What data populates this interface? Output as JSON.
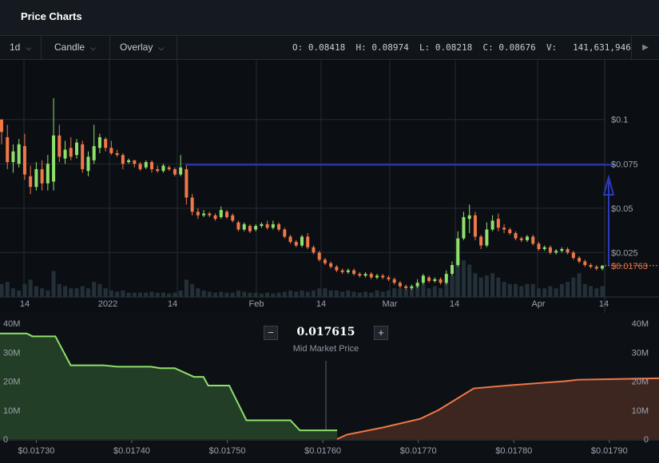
{
  "header": {
    "title": "Price Charts"
  },
  "toolbar": {
    "interval": "1d",
    "chart_type": "Candle",
    "overlay": "Overlay",
    "ohlc": {
      "o_label": "O:",
      "o": "0.08418",
      "h_label": "H:",
      "h": "0.08974",
      "l_label": "L:",
      "l": "0.08218",
      "c_label": "C:",
      "c": "0.08676",
      "v_label": "V:",
      "v": "141,631,946"
    }
  },
  "colors": {
    "up": "#8ee06a",
    "down": "#f07848",
    "bid_fill": "#233e26",
    "ask_fill": "#3e2620",
    "line": "#2b3ab8",
    "volume": "#243038"
  },
  "chart_data": [
    {
      "type": "candlestick",
      "x_tick_labels": [
        "14",
        "2022",
        "14",
        "Feb",
        "14",
        "Mar",
        "14",
        "Apr",
        "14"
      ],
      "y_tick_labels": [
        "$0.1",
        "$0.075",
        "$0.05",
        "$0.025"
      ],
      "ylim": [
        0.0,
        0.1336
      ],
      "last_price_label": "$0.01763",
      "last_price": 0.01763,
      "horizontal_line": 0.0745,
      "arrow": {
        "from": 0.018,
        "to": 0.063
      },
      "candles": [
        [
          0.1,
          0.093,
          0.098,
          0.086
        ],
        [
          0.09,
          0.076,
          0.097,
          0.072
        ],
        [
          0.076,
          0.082,
          0.086,
          0.07
        ],
        [
          0.075,
          0.086,
          0.089,
          0.073
        ],
        [
          0.085,
          0.069,
          0.092,
          0.066
        ],
        [
          0.068,
          0.062,
          0.074,
          0.058
        ],
        [
          0.062,
          0.072,
          0.076,
          0.06
        ],
        [
          0.072,
          0.064,
          0.077,
          0.06
        ],
        [
          0.064,
          0.075,
          0.08,
          0.06
        ],
        [
          0.065,
          0.091,
          0.112,
          0.06
        ],
        [
          0.091,
          0.079,
          0.097,
          0.076
        ],
        [
          0.078,
          0.083,
          0.088,
          0.075
        ],
        [
          0.084,
          0.079,
          0.09,
          0.077
        ],
        [
          0.08,
          0.087,
          0.089,
          0.078
        ],
        [
          0.086,
          0.072,
          0.088,
          0.07
        ],
        [
          0.071,
          0.079,
          0.082,
          0.068
        ],
        [
          0.077,
          0.085,
          0.097,
          0.075
        ],
        [
          0.084,
          0.09,
          0.092,
          0.081
        ],
        [
          0.089,
          0.084,
          0.09,
          0.082
        ],
        [
          0.084,
          0.081,
          0.088,
          0.08
        ],
        [
          0.081,
          0.08,
          0.083,
          0.079
        ],
        [
          0.08,
          0.075,
          0.081,
          0.072
        ],
        [
          0.076,
          0.077,
          0.078,
          0.075
        ],
        [
          0.077,
          0.075,
          0.077,
          0.073
        ],
        [
          0.075,
          0.072,
          0.076,
          0.071
        ],
        [
          0.073,
          0.076,
          0.077,
          0.072
        ],
        [
          0.076,
          0.072,
          0.077,
          0.07
        ],
        [
          0.072,
          0.071,
          0.074,
          0.07
        ],
        [
          0.071,
          0.074,
          0.075,
          0.07
        ],
        [
          0.073,
          0.072,
          0.074,
          0.071
        ],
        [
          0.072,
          0.069,
          0.073,
          0.068
        ],
        [
          0.069,
          0.073,
          0.08,
          0.068
        ],
        [
          0.072,
          0.056,
          0.074,
          0.052
        ],
        [
          0.056,
          0.048,
          0.058,
          0.046
        ],
        [
          0.048,
          0.046,
          0.05,
          0.044
        ],
        [
          0.046,
          0.047,
          0.049,
          0.045
        ],
        [
          0.047,
          0.046,
          0.048,
          0.045
        ],
        [
          0.046,
          0.044,
          0.047,
          0.043
        ],
        [
          0.045,
          0.049,
          0.051,
          0.044
        ],
        [
          0.048,
          0.045,
          0.049,
          0.044
        ],
        [
          0.046,
          0.043,
          0.047,
          0.042
        ],
        [
          0.042,
          0.038,
          0.043,
          0.037
        ],
        [
          0.038,
          0.041,
          0.042,
          0.037
        ],
        [
          0.04,
          0.037,
          0.041,
          0.036
        ],
        [
          0.038,
          0.04,
          0.041,
          0.037
        ],
        [
          0.04,
          0.041,
          0.042,
          0.039
        ],
        [
          0.041,
          0.039,
          0.043,
          0.038
        ],
        [
          0.039,
          0.041,
          0.043,
          0.038
        ],
        [
          0.041,
          0.038,
          0.042,
          0.037
        ],
        [
          0.038,
          0.034,
          0.039,
          0.033
        ],
        [
          0.034,
          0.031,
          0.035,
          0.03
        ],
        [
          0.031,
          0.029,
          0.032,
          0.028
        ],
        [
          0.029,
          0.034,
          0.035,
          0.028
        ],
        [
          0.034,
          0.028,
          0.036,
          0.027
        ],
        [
          0.028,
          0.025,
          0.029,
          0.024
        ],
        [
          0.025,
          0.021,
          0.026,
          0.02
        ],
        [
          0.021,
          0.019,
          0.022,
          0.018
        ],
        [
          0.019,
          0.017,
          0.02,
          0.016
        ],
        [
          0.017,
          0.015,
          0.018,
          0.014
        ],
        [
          0.015,
          0.014,
          0.016,
          0.013
        ],
        [
          0.014,
          0.015,
          0.016,
          0.013
        ],
        [
          0.015,
          0.013,
          0.016,
          0.012
        ],
        [
          0.013,
          0.012,
          0.014,
          0.011
        ],
        [
          0.012,
          0.013,
          0.014,
          0.011
        ],
        [
          0.013,
          0.011,
          0.014,
          0.01
        ],
        [
          0.011,
          0.012,
          0.013,
          0.01
        ],
        [
          0.012,
          0.011,
          0.013,
          0.01
        ],
        [
          0.011,
          0.01,
          0.012,
          0.009
        ],
        [
          0.01,
          0.008,
          0.011,
          0.007
        ],
        [
          0.008,
          0.006,
          0.009,
          0.005
        ],
        [
          0.006,
          0.005,
          0.007,
          0.004
        ],
        [
          0.005,
          0.006,
          0.007,
          0.004
        ],
        [
          0.006,
          0.008,
          0.01,
          0.005
        ],
        [
          0.008,
          0.012,
          0.013,
          0.007
        ],
        [
          0.011,
          0.009,
          0.012,
          0.008
        ],
        [
          0.009,
          0.01,
          0.011,
          0.008
        ],
        [
          0.01,
          0.008,
          0.011,
          0.007
        ],
        [
          0.008,
          0.013,
          0.015,
          0.007
        ],
        [
          0.013,
          0.018,
          0.02,
          0.012
        ],
        [
          0.018,
          0.033,
          0.037,
          0.017
        ],
        [
          0.033,
          0.045,
          0.048,
          0.032
        ],
        [
          0.044,
          0.046,
          0.052,
          0.036
        ],
        [
          0.046,
          0.034,
          0.048,
          0.032
        ],
        [
          0.034,
          0.029,
          0.035,
          0.027
        ],
        [
          0.029,
          0.038,
          0.042,
          0.028
        ],
        [
          0.038,
          0.043,
          0.046,
          0.037
        ],
        [
          0.044,
          0.039,
          0.047,
          0.037
        ],
        [
          0.039,
          0.038,
          0.041,
          0.036
        ],
        [
          0.038,
          0.036,
          0.039,
          0.035
        ],
        [
          0.036,
          0.033,
          0.037,
          0.032
        ],
        [
          0.033,
          0.032,
          0.034,
          0.031
        ],
        [
          0.032,
          0.034,
          0.035,
          0.031
        ],
        [
          0.034,
          0.03,
          0.035,
          0.029
        ],
        [
          0.03,
          0.027,
          0.031,
          0.026
        ],
        [
          0.027,
          0.028,
          0.029,
          0.026
        ],
        [
          0.028,
          0.025,
          0.029,
          0.024
        ],
        [
          0.025,
          0.026,
          0.027,
          0.024
        ],
        [
          0.026,
          0.027,
          0.028,
          0.025
        ],
        [
          0.027,
          0.025,
          0.028,
          0.024
        ],
        [
          0.025,
          0.022,
          0.026,
          0.021
        ],
        [
          0.022,
          0.02,
          0.023,
          0.019
        ],
        [
          0.02,
          0.018,
          0.021,
          0.017
        ],
        [
          0.018,
          0.017,
          0.019,
          0.016
        ],
        [
          0.017,
          0.016,
          0.018,
          0.015
        ],
        [
          0.016,
          0.0176,
          0.018,
          0.015
        ]
      ],
      "volume_fraction": [
        0.3,
        0.35,
        0.2,
        0.15,
        0.3,
        0.4,
        0.25,
        0.2,
        0.15,
        0.6,
        0.3,
        0.25,
        0.2,
        0.2,
        0.25,
        0.2,
        0.35,
        0.3,
        0.2,
        0.15,
        0.12,
        0.15,
        0.1,
        0.1,
        0.1,
        0.1,
        0.12,
        0.1,
        0.1,
        0.08,
        0.1,
        0.15,
        0.4,
        0.3,
        0.2,
        0.15,
        0.12,
        0.1,
        0.12,
        0.1,
        0.1,
        0.15,
        0.12,
        0.1,
        0.1,
        0.08,
        0.1,
        0.08,
        0.1,
        0.12,
        0.15,
        0.12,
        0.15,
        0.12,
        0.15,
        0.2,
        0.2,
        0.15,
        0.15,
        0.12,
        0.15,
        0.12,
        0.1,
        0.12,
        0.1,
        0.15,
        0.12,
        0.15,
        0.2,
        0.2,
        0.18,
        0.2,
        0.25,
        0.3,
        0.2,
        0.25,
        0.2,
        0.35,
        0.5,
        0.9,
        0.85,
        0.75,
        0.55,
        0.45,
        0.5,
        0.55,
        0.45,
        0.35,
        0.3,
        0.3,
        0.25,
        0.3,
        0.3,
        0.2,
        0.2,
        0.25,
        0.2,
        0.3,
        0.35,
        0.45,
        0.55,
        0.3,
        0.25,
        0.2,
        0.25
      ]
    },
    {
      "type": "area",
      "title": "Mid Market Price",
      "mid_price": "0.017615",
      "x_tick_labels": [
        "$0.01730",
        "$0.01740",
        "$0.01750",
        "$0.01760",
        "$0.01770",
        "$0.01780",
        "$0.01790"
      ],
      "x_ticks": [
        0.0173,
        0.0174,
        0.0175,
        0.0176,
        0.0177,
        0.0178,
        0.0179
      ],
      "y_tick_labels": [
        "40M",
        "30M",
        "20M",
        "10M",
        "0"
      ],
      "y_ticks": [
        40,
        30,
        20,
        10,
        0
      ],
      "xlim": [
        0.017262,
        0.017952
      ],
      "ylim": [
        0,
        40
      ],
      "series": [
        {
          "side": "bid",
          "x": [
            0.017262,
            0.01729,
            0.017296,
            0.01732,
            0.017336,
            0.01737,
            0.017385,
            0.01742,
            0.01743,
            0.017445,
            0.017465,
            0.017475,
            0.01748,
            0.017502,
            0.01752,
            0.017566,
            0.017576,
            0.017615
          ],
          "y": [
            36.5,
            36.5,
            35.5,
            35.5,
            25.5,
            25.5,
            25.0,
            25.0,
            24.5,
            24.5,
            21.5,
            21.5,
            18.5,
            18.5,
            6.5,
            6.5,
            3.0,
            3.0
          ]
        },
        {
          "side": "ask",
          "x": [
            0.017615,
            0.017625,
            0.017663,
            0.017702,
            0.017721,
            0.017758,
            0.017793,
            0.017833,
            0.017854,
            0.017867,
            0.017952
          ],
          "y": [
            0.0,
            1.5,
            4.0,
            7.0,
            10.0,
            17.5,
            18.5,
            19.5,
            20.0,
            20.5,
            21.0
          ]
        }
      ]
    }
  ]
}
